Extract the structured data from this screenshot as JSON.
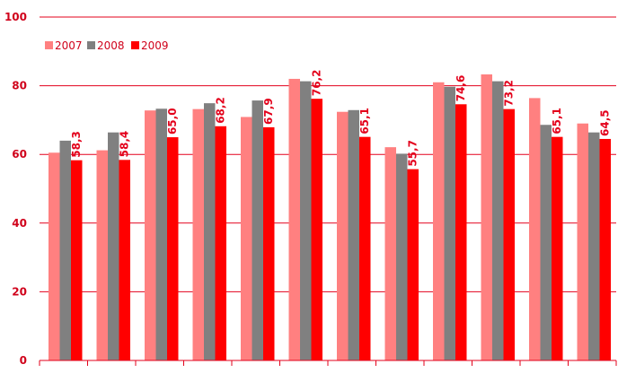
{
  "chart_data": {
    "type": "bar",
    "categories": [
      "",
      "",
      "",
      "",
      "",
      "",
      "",
      "",
      "",
      "",
      "",
      ""
    ],
    "series": [
      {
        "name": "2007",
        "color": "#ff8080",
        "values": [
          60.5,
          61.2,
          72.8,
          73.2,
          70.9,
          82.0,
          72.4,
          62.1,
          81.0,
          83.3,
          76.4,
          69.0
        ],
        "labels": []
      },
      {
        "name": "2008",
        "color": "#808080",
        "values": [
          64.0,
          66.4,
          73.3,
          74.9,
          75.7,
          81.3,
          72.9,
          60.2,
          79.7,
          81.3,
          68.6,
          66.4
        ],
        "labels": []
      },
      {
        "name": "2009",
        "color": "#ff0000",
        "values": [
          58.3,
          58.4,
          65.0,
          68.2,
          67.9,
          76.2,
          65.1,
          55.7,
          74.6,
          73.2,
          65.1,
          64.5
        ],
        "labels": [
          "58,3",
          "58,4",
          "65,0",
          "68,2",
          "67,9",
          "76,2",
          "65,1",
          "55,7",
          "74,6",
          "73,2",
          "65,1",
          "64,5"
        ]
      }
    ],
    "title": "",
    "xlabel": "",
    "ylabel": "",
    "ylim": [
      0,
      100
    ],
    "yticks": [
      {
        "value": 0,
        "label": "0"
      },
      {
        "value": 20,
        "label": "20"
      },
      {
        "value": 40,
        "label": "40"
      },
      {
        "value": 60,
        "label": "60"
      },
      {
        "value": 80,
        "label": "80"
      },
      {
        "value": 100,
        "label": "100"
      }
    ],
    "grid": true,
    "grid_color": "#e3001b",
    "legend": {
      "position": "top-left",
      "entries": [
        "2007",
        "2008",
        "2009"
      ]
    }
  }
}
